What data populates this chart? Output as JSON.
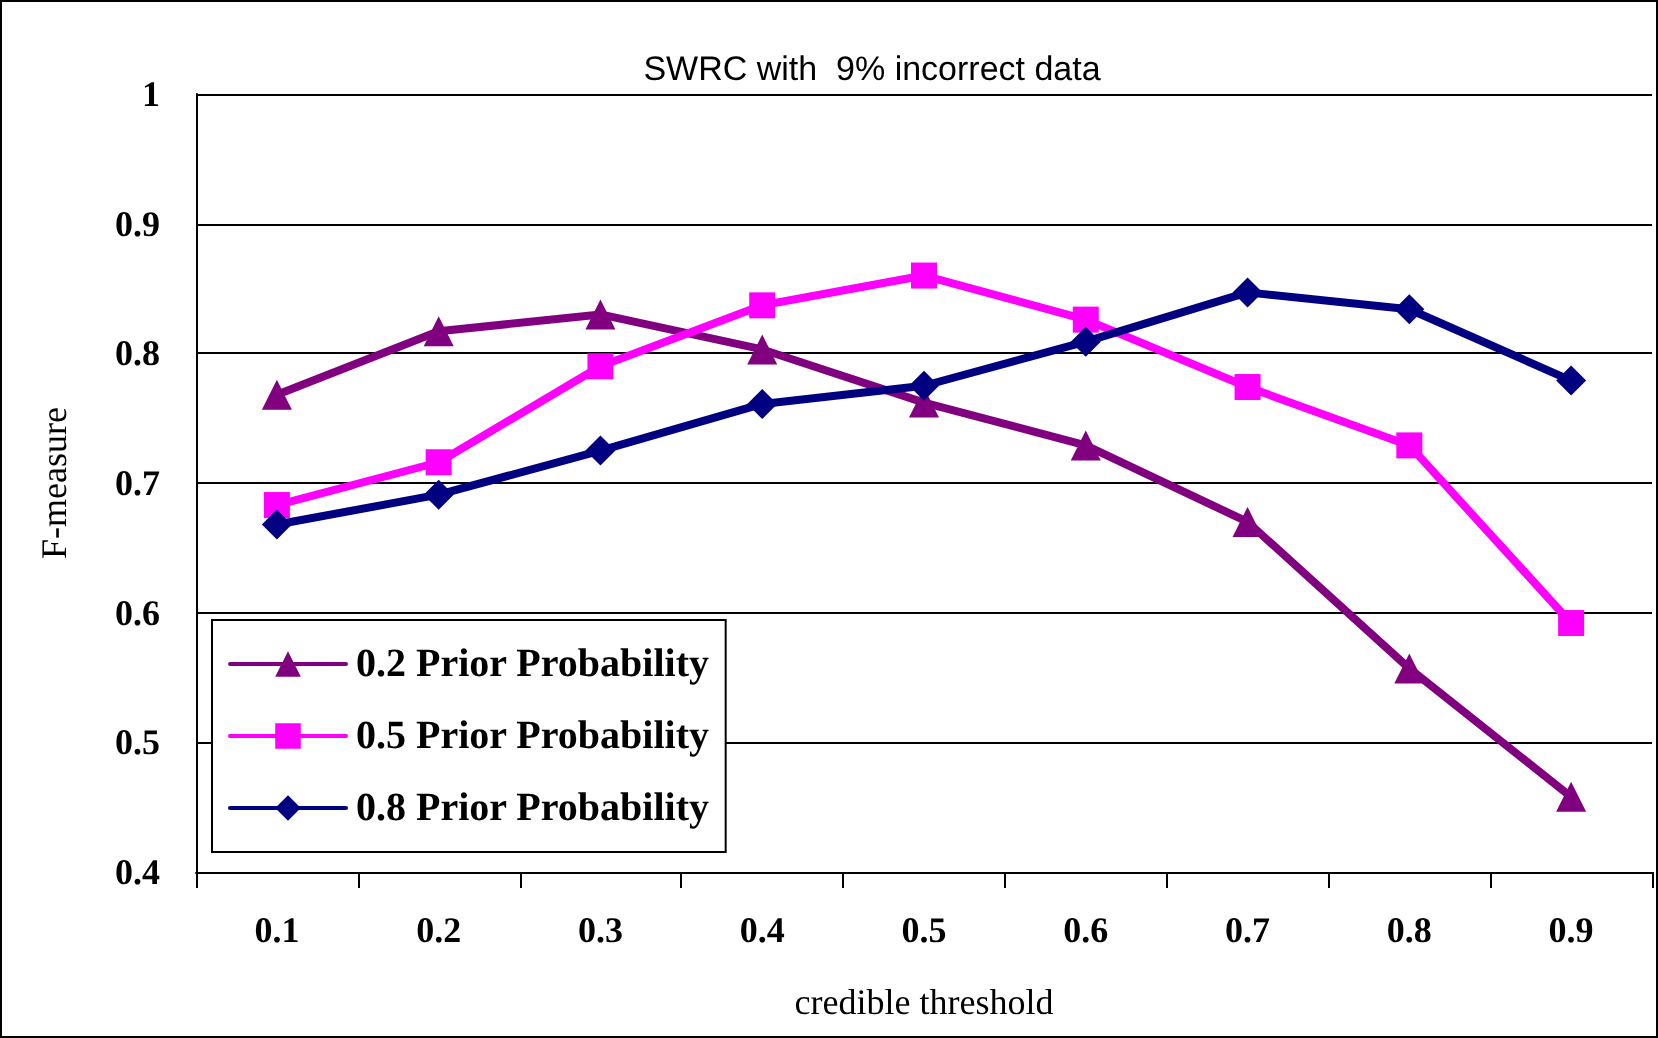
{
  "chart_data": {
    "type": "line",
    "title": "SWRC with  9% incorrect data",
    "xlabel": "credible threshold",
    "ylabel": "F-measure",
    "categories": [
      "0.1",
      "0.2",
      "0.3",
      "0.4",
      "0.5",
      "0.6",
      "0.7",
      "0.8",
      "0.9"
    ],
    "ylim": [
      0.4,
      1
    ],
    "yticks": [
      0.4,
      0.5,
      0.6,
      0.7,
      0.8,
      0.9,
      1
    ],
    "grid": "y",
    "legend": "bottom left",
    "line_style": "solid",
    "series": [
      {
        "name": "0.2 Prior Probability",
        "color": "#800080",
        "marker": "triangle",
        "values": [
          0.768,
          0.817,
          0.83,
          0.803,
          0.762,
          0.729,
          0.67,
          0.557,
          0.458
        ]
      },
      {
        "name": "0.5 Prior Probability",
        "color": "#ff00ff",
        "marker": "square",
        "values": [
          0.683,
          0.716,
          0.79,
          0.837,
          0.86,
          0.826,
          0.774,
          0.729,
          0.592
        ]
      },
      {
        "name": "0.8 Prior Probability",
        "color": "#000080",
        "marker": "diamond",
        "values": [
          0.668,
          0.691,
          0.725,
          0.761,
          0.775,
          0.809,
          0.847,
          0.834,
          0.779
        ]
      }
    ]
  }
}
